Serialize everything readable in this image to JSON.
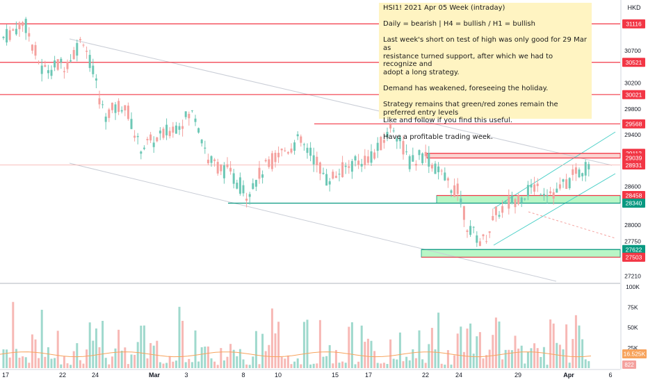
{
  "chart_data": {
    "type": "candlestick",
    "symbol": "HSI1!",
    "currency": "HKD",
    "price_scale": {
      "ticks": [
        30700,
        30200,
        29800,
        29400,
        28600,
        28000,
        27750,
        27210
      ],
      "min": 27130,
      "max": 31400
    },
    "volume_scale": {
      "ticks": [
        "100K",
        "75K",
        "50K",
        "25K"
      ],
      "max": 100000
    },
    "x_ticks": [
      "17",
      "22",
      "24",
      "Mar",
      "3",
      "8",
      "10",
      "15",
      "17",
      "22",
      "24",
      "29",
      "Apr",
      "6"
    ],
    "level_lines": [
      {
        "price": 31116,
        "label": "31116",
        "color": "#f23645"
      },
      {
        "price": 30521,
        "label": "30521",
        "color": "#f23645"
      },
      {
        "price": 30021,
        "label": "30021",
        "color": "#f23645"
      },
      {
        "price": 29568,
        "label": "29568",
        "color": "#f23645"
      },
      {
        "price": 29112,
        "label": "29112",
        "color": "#f23645"
      },
      {
        "price": 29039,
        "label": "29039",
        "color": "#f23645"
      },
      {
        "price": 28931,
        "label": "28931",
        "color": "#f23645"
      },
      {
        "price": 28458,
        "label": "28458",
        "color": "#f23645"
      },
      {
        "price": 28340,
        "label": "28340",
        "color": "#089981"
      },
      {
        "price": 27622,
        "label": "27622",
        "color": "#089981"
      },
      {
        "price": 27503,
        "label": "27503",
        "color": "#f23645"
      }
    ],
    "zones": [
      {
        "top": 29112,
        "bottom": 29039,
        "kind": "red"
      },
      {
        "top": 28458,
        "bottom": 28340,
        "kind": "green"
      },
      {
        "top": 27622,
        "bottom": 27503,
        "kind": "green"
      }
    ],
    "volume_last": "16.525K",
    "volume_bottom": "822"
  },
  "note": {
    "lines": [
      "HSI1! 2021 Apr 05 Week (intraday)",
      "Daily = bearish | H4 = bullish  /   H1 = bullish",
      "Last week's short on test of high was only good for 29 Mar as\nresistance turned support, after which we had to recognize and\nadopt a long strategy.",
      "Demand has weakened, foreseeing the holiday.",
      "Strategy remains that green/red zones remain the preferred entry levels\nLike and follow if you find this useful.",
      "Have a profitable trading week."
    ]
  },
  "colors": {
    "up": "#6cc7b5",
    "down": "#f4a19e",
    "resistance": "#f23645",
    "support": "#089981",
    "zone_green": "#b9f6c6",
    "zone_red": "#fbd4d1",
    "note_bg": "#fff4c2"
  }
}
